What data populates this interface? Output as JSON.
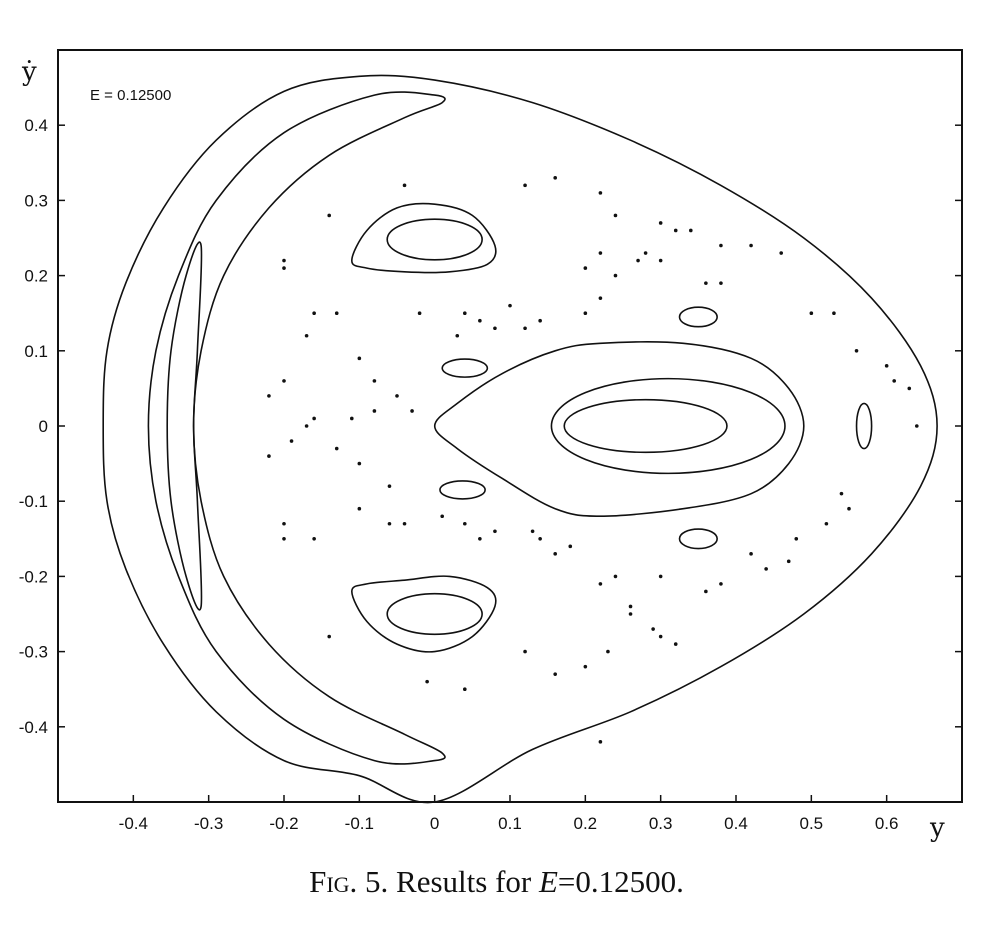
{
  "chart_data": {
    "type": "scatter",
    "title": "",
    "xlabel": "y",
    "ylabel": "ẏ",
    "annotation": "E = 0.12500",
    "xlim": [
      -0.5,
      0.7
    ],
    "ylim": [
      -0.5,
      0.5
    ],
    "xticks": [
      -0.4,
      -0.3,
      -0.2,
      -0.1,
      0,
      0.1,
      0.2,
      0.3,
      0.4,
      0.5,
      0.6
    ],
    "xtick_labels": [
      "-0.4",
      "-0.3",
      "-0.2",
      "-0.1",
      "0",
      "0.1",
      "0.2",
      "0.3",
      "0.4",
      "0.5",
      "0.6"
    ],
    "yticks": [
      0.4,
      0.3,
      0.2,
      0.1,
      0,
      -0.1,
      -0.2,
      -0.3,
      -0.4
    ],
    "ytick_labels": [
      "0.4",
      "0.3",
      "0.2",
      "0.1",
      "0",
      "-0.1",
      "-0.2",
      "-0.3",
      "-0.4"
    ],
    "grid": false,
    "curves": [
      {
        "name": "energy-boundary",
        "points": [
          [
            0.667,
            0
          ],
          [
            0.645,
            0.08
          ],
          [
            0.58,
            0.17
          ],
          [
            0.49,
            0.25
          ],
          [
            0.38,
            0.32
          ],
          [
            0.26,
            0.38
          ],
          [
            0.13,
            0.43
          ],
          [
            0,
            0.46
          ],
          [
            -0.1,
            0.465
          ],
          [
            -0.2,
            0.445
          ],
          [
            -0.29,
            0.38
          ],
          [
            -0.36,
            0.29
          ],
          [
            -0.41,
            0.19
          ],
          [
            -0.435,
            0.1
          ],
          [
            -0.44,
            0
          ],
          [
            -0.435,
            -0.1
          ],
          [
            -0.41,
            -0.19
          ],
          [
            -0.36,
            -0.29
          ],
          [
            -0.29,
            -0.38
          ],
          [
            -0.2,
            -0.445
          ],
          [
            -0.1,
            -0.465
          ],
          [
            0,
            -0.5
          ],
          [
            0.13,
            -0.43
          ],
          [
            0.26,
            -0.38
          ],
          [
            0.38,
            -0.32
          ],
          [
            0.49,
            -0.25
          ],
          [
            0.58,
            -0.17
          ],
          [
            0.645,
            -0.08
          ]
        ],
        "closed": true
      },
      {
        "name": "left-crescent-outer",
        "points": [
          [
            0.01,
            0.43
          ],
          [
            0,
            0.44
          ],
          [
            -0.08,
            0.44
          ],
          [
            -0.2,
            0.39
          ],
          [
            -0.29,
            0.3
          ],
          [
            -0.34,
            0.2
          ],
          [
            -0.37,
            0.1
          ],
          [
            -0.38,
            0
          ],
          [
            -0.37,
            -0.1
          ],
          [
            -0.34,
            -0.2
          ],
          [
            -0.29,
            -0.3
          ],
          [
            -0.2,
            -0.39
          ],
          [
            -0.08,
            -0.445
          ],
          [
            0,
            -0.445
          ],
          [
            0.01,
            -0.435
          ],
          [
            -0.04,
            -0.41
          ],
          [
            -0.14,
            -0.36
          ],
          [
            -0.22,
            -0.29
          ],
          [
            -0.28,
            -0.2
          ],
          [
            -0.31,
            -0.1
          ],
          [
            -0.32,
            0
          ],
          [
            -0.31,
            0.1
          ],
          [
            -0.28,
            0.2
          ],
          [
            -0.22,
            0.29
          ],
          [
            -0.14,
            0.36
          ],
          [
            -0.04,
            0.41
          ]
        ],
        "closed": true
      },
      {
        "name": "left-crescent-inner",
        "points": [
          [
            -0.31,
            0.24
          ],
          [
            -0.33,
            0.2
          ],
          [
            -0.35,
            0.1
          ],
          [
            -0.355,
            0
          ],
          [
            -0.35,
            -0.1
          ],
          [
            -0.33,
            -0.2
          ],
          [
            -0.31,
            -0.24
          ],
          [
            -0.315,
            -0.1
          ],
          [
            -0.32,
            0
          ],
          [
            -0.315,
            0.1
          ]
        ],
        "closed": true
      },
      {
        "name": "right-island-outer",
        "points": [
          [
            0,
            0
          ],
          [
            0.03,
            0.03
          ],
          [
            0.09,
            0.07
          ],
          [
            0.16,
            0.1
          ],
          [
            0.22,
            0.11
          ],
          [
            0.33,
            0.11
          ],
          [
            0.42,
            0.09
          ],
          [
            0.47,
            0.05
          ],
          [
            0.49,
            0
          ],
          [
            0.47,
            -0.05
          ],
          [
            0.42,
            -0.09
          ],
          [
            0.33,
            -0.11
          ],
          [
            0.22,
            -0.12
          ],
          [
            0.16,
            -0.11
          ],
          [
            0.09,
            -0.07
          ],
          [
            0.03,
            -0.03
          ]
        ],
        "closed": true
      },
      {
        "name": "right-island-mid",
        "ellipse": [
          0.31,
          0,
          0.155,
          0.063
        ]
      },
      {
        "name": "right-island-inner",
        "ellipse": [
          0.28,
          0,
          0.108,
          0.035
        ]
      },
      {
        "name": "top-island-outer",
        "points": [
          [
            -0.11,
            0.22
          ],
          [
            -0.09,
            0.26
          ],
          [
            -0.05,
            0.29
          ],
          [
            0,
            0.295
          ],
          [
            0.05,
            0.28
          ],
          [
            0.08,
            0.24
          ],
          [
            0.07,
            0.215
          ],
          [
            0.02,
            0.205
          ],
          [
            -0.04,
            0.205
          ],
          [
            -0.09,
            0.21
          ]
        ],
        "closed": true
      },
      {
        "name": "top-island-inner",
        "ellipse": [
          0,
          0.248,
          0.063,
          0.027
        ]
      },
      {
        "name": "bottom-island-outer",
        "points": [
          [
            -0.11,
            -0.22
          ],
          [
            -0.09,
            -0.26
          ],
          [
            -0.05,
            -0.29
          ],
          [
            0,
            -0.3
          ],
          [
            0.05,
            -0.28
          ],
          [
            0.08,
            -0.24
          ],
          [
            0.07,
            -0.215
          ],
          [
            0.02,
            -0.2
          ],
          [
            -0.04,
            -0.205
          ],
          [
            -0.09,
            -0.21
          ]
        ],
        "closed": true
      },
      {
        "name": "bottom-island-inner",
        "ellipse": [
          0,
          -0.25,
          0.063,
          0.027
        ]
      },
      {
        "name": "small-island-a",
        "ellipse": [
          0.04,
          0.077,
          0.03,
          0.012
        ]
      },
      {
        "name": "small-island-b",
        "ellipse": [
          0.037,
          -0.085,
          0.03,
          0.012
        ]
      },
      {
        "name": "small-island-c",
        "ellipse": [
          0.35,
          0.145,
          0.025,
          0.013
        ]
      },
      {
        "name": "small-island-d",
        "ellipse": [
          0.35,
          -0.15,
          0.025,
          0.013
        ]
      },
      {
        "name": "small-island-e",
        "ellipse": [
          0.57,
          0,
          0.01,
          0.03
        ]
      }
    ],
    "points": [
      [
        -0.04,
        0.32
      ],
      [
        -0.14,
        0.28
      ],
      [
        -0.2,
        0.22
      ],
      [
        -0.2,
        0.21
      ],
      [
        -0.13,
        0.15
      ],
      [
        -0.16,
        0.15
      ],
      [
        -0.17,
        0.12
      ],
      [
        -0.2,
        0.06
      ],
      [
        -0.22,
        0.04
      ],
      [
        -0.1,
        0.09
      ],
      [
        -0.08,
        0.06
      ],
      [
        -0.05,
        0.04
      ],
      [
        -0.03,
        0.02
      ],
      [
        -0.08,
        0.02
      ],
      [
        -0.11,
        0.01
      ],
      [
        -0.16,
        0.01
      ],
      [
        -0.17,
        0.0
      ],
      [
        -0.19,
        -0.02
      ],
      [
        -0.22,
        -0.04
      ],
      [
        -0.13,
        -0.03
      ],
      [
        -0.1,
        -0.05
      ],
      [
        -0.06,
        -0.08
      ],
      [
        -0.1,
        -0.11
      ],
      [
        -0.2,
        -0.13
      ],
      [
        -0.2,
        -0.15
      ],
      [
        -0.16,
        -0.15
      ],
      [
        -0.06,
        -0.13
      ],
      [
        -0.04,
        -0.13
      ],
      [
        0.01,
        -0.12
      ],
      [
        0.04,
        -0.13
      ],
      [
        0.06,
        -0.15
      ],
      [
        0.08,
        -0.14
      ],
      [
        0.12,
        0.32
      ],
      [
        0.16,
        0.33
      ],
      [
        0.22,
        0.31
      ],
      [
        0.24,
        0.28
      ],
      [
        0.3,
        0.27
      ],
      [
        0.32,
        0.26
      ],
      [
        0.34,
        0.26
      ],
      [
        0.38,
        0.24
      ],
      [
        0.42,
        0.24
      ],
      [
        0.46,
        0.23
      ],
      [
        0.22,
        0.23
      ],
      [
        0.28,
        0.23
      ],
      [
        0.3,
        0.22
      ],
      [
        0.2,
        0.21
      ],
      [
        0.24,
        0.2
      ],
      [
        0.27,
        0.22
      ],
      [
        0.36,
        0.19
      ],
      [
        0.38,
        0.19
      ],
      [
        0.22,
        0.17
      ],
      [
        0.2,
        0.15
      ],
      [
        0.14,
        0.14
      ],
      [
        0.12,
        0.13
      ],
      [
        0.08,
        0.13
      ],
      [
        0.06,
        0.14
      ],
      [
        0.04,
        0.15
      ],
      [
        -0.02,
        0.15
      ],
      [
        0.03,
        0.12
      ],
      [
        0.1,
        0.16
      ],
      [
        0.5,
        0.15
      ],
      [
        0.53,
        0.15
      ],
      [
        0.56,
        0.1
      ],
      [
        0.6,
        0.08
      ],
      [
        0.61,
        0.06
      ],
      [
        0.63,
        0.05
      ],
      [
        0.64,
        0.0
      ],
      [
        0.22,
        -0.21
      ],
      [
        0.24,
        -0.2
      ],
      [
        0.3,
        -0.2
      ],
      [
        0.36,
        -0.22
      ],
      [
        0.38,
        -0.21
      ],
      [
        0.44,
        -0.19
      ],
      [
        0.47,
        -0.18
      ],
      [
        0.48,
        -0.15
      ],
      [
        0.52,
        -0.13
      ],
      [
        0.55,
        -0.11
      ],
      [
        0.54,
        -0.09
      ],
      [
        0.42,
        -0.17
      ],
      [
        0.29,
        -0.27
      ],
      [
        0.3,
        -0.28
      ],
      [
        0.32,
        -0.29
      ],
      [
        0.26,
        -0.24
      ],
      [
        0.23,
        -0.3
      ],
      [
        0.2,
        -0.32
      ],
      [
        0.16,
        -0.33
      ],
      [
        0.22,
        -0.42
      ],
      [
        0.14,
        -0.15
      ],
      [
        0.16,
        -0.17
      ],
      [
        0.18,
        -0.16
      ],
      [
        0.13,
        -0.14
      ],
      [
        -0.14,
        -0.28
      ],
      [
        -0.01,
        -0.34
      ],
      [
        0.04,
        -0.35
      ],
      [
        0.12,
        -0.3
      ],
      [
        0.26,
        -0.25
      ]
    ]
  },
  "caption": {
    "prefix": "Fig",
    "number": ". 5. Results for ",
    "variable": "E",
    "value": "=0.12500."
  }
}
